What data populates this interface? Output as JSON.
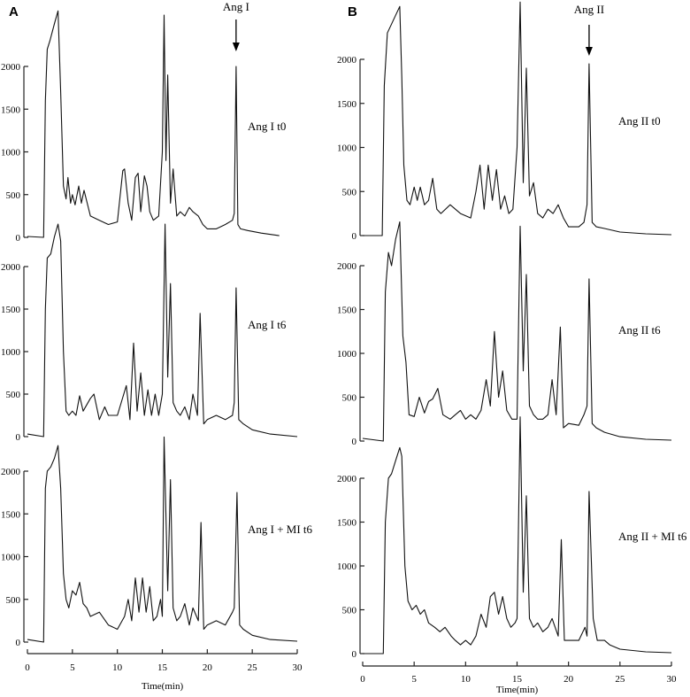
{
  "figure": {
    "panels": [
      {
        "letter": "A",
        "arrow_label": "Ang I",
        "xlabel": "Time(min)",
        "xticks": [
          "0",
          "5",
          "10",
          "15",
          "20",
          "25",
          "30"
        ],
        "yticks": [
          "0",
          "500",
          "1000",
          "1500",
          "2000"
        ],
        "trace_labels": [
          "Ang I t0",
          "Ang I t6",
          "Ang I + MI t6"
        ]
      },
      {
        "letter": "B",
        "arrow_label": "Ang II",
        "xlabel": "Time(min)",
        "xticks": [
          "0",
          "5",
          "10",
          "15",
          "20",
          "25",
          "30"
        ],
        "yticks": [
          "0",
          "500",
          "1000",
          "1500",
          "2000"
        ],
        "trace_labels": [
          "Ang II t0",
          "Ang II t6",
          "Ang II + MI t6"
        ]
      }
    ]
  },
  "chart_data": [
    {
      "type": "line",
      "title": "A",
      "xlabel": "Time(min)",
      "ylabel": "",
      "xlim": [
        0,
        30
      ],
      "ylim": [
        0,
        2000
      ],
      "annotations": [
        {
          "text": "Ang I",
          "x": 23.2,
          "arrow": true
        }
      ],
      "series": [
        {
          "name": "Ang I t0",
          "x": [
            0,
            1.8,
            2.0,
            2.2,
            2.5,
            3.0,
            3.4,
            3.7,
            4.0,
            4.3,
            4.5,
            4.8,
            5.0,
            5.3,
            5.7,
            6.0,
            6.3,
            7.0,
            8.0,
            9.0,
            10.0,
            10.6,
            10.8,
            11.2,
            11.6,
            12.0,
            12.3,
            12.6,
            13.0,
            13.3,
            13.6,
            14.0,
            14.6,
            15.0,
            15.2,
            15.4,
            15.6,
            15.9,
            16.2,
            16.6,
            17.0,
            17.5,
            18.0,
            18.4,
            19.0,
            19.5,
            20.0,
            21.0,
            22.0,
            22.8,
            23.0,
            23.2,
            23.4,
            23.7,
            24.5,
            26.0,
            28.0
          ],
          "y": [
            10,
            0,
            1600,
            2200,
            2300,
            2500,
            2650,
            1700,
            600,
            450,
            700,
            400,
            500,
            380,
            600,
            400,
            550,
            250,
            200,
            150,
            180,
            780,
            800,
            400,
            200,
            700,
            750,
            300,
            720,
            600,
            300,
            200,
            250,
            1000,
            2600,
            900,
            1900,
            400,
            800,
            250,
            300,
            250,
            350,
            300,
            250,
            150,
            100,
            100,
            150,
            200,
            280,
            2000,
            150,
            100,
            80,
            50,
            20
          ]
        },
        {
          "name": "Ang I t6",
          "x": [
            0,
            1.8,
            2.0,
            2.2,
            2.6,
            3.0,
            3.4,
            3.7,
            4.0,
            4.3,
            4.6,
            5.0,
            5.4,
            5.8,
            6.2,
            7.0,
            7.4,
            8.0,
            8.6,
            9.0,
            10.0,
            11.0,
            11.4,
            11.8,
            12.2,
            12.6,
            13.0,
            13.4,
            13.8,
            14.2,
            14.6,
            15.0,
            15.3,
            15.6,
            15.9,
            16.2,
            16.6,
            17.0,
            17.5,
            18.0,
            18.4,
            18.9,
            19.2,
            19.6,
            20.0,
            21.0,
            22.0,
            22.8,
            23.0,
            23.2,
            23.5,
            24.0,
            25.0,
            27.0,
            30.0
          ],
          "y": [
            30,
            0,
            1500,
            2100,
            2150,
            2350,
            2500,
            2300,
            1000,
            300,
            250,
            300,
            250,
            480,
            300,
            450,
            500,
            200,
            350,
            250,
            250,
            600,
            200,
            1100,
            300,
            750,
            250,
            550,
            250,
            500,
            250,
            500,
            2500,
            700,
            1800,
            400,
            300,
            250,
            350,
            200,
            500,
            250,
            1450,
            150,
            200,
            250,
            200,
            250,
            400,
            1750,
            200,
            150,
            80,
            30,
            0
          ]
        },
        {
          "name": "Ang I + MI t6",
          "x": [
            0,
            1.8,
            2.0,
            2.2,
            2.6,
            3.0,
            3.4,
            3.7,
            4.0,
            4.3,
            4.6,
            5.0,
            5.4,
            5.8,
            6.2,
            6.6,
            7.0,
            8.0,
            9.0,
            10.0,
            10.8,
            11.2,
            11.6,
            12.0,
            12.4,
            12.8,
            13.2,
            13.6,
            14.0,
            14.4,
            14.8,
            15.0,
            15.2,
            15.6,
            15.9,
            16.2,
            16.6,
            17.0,
            17.5,
            18.0,
            18.4,
            19.0,
            19.3,
            19.6,
            20.0,
            21.0,
            22.0,
            22.8,
            23.0,
            23.3,
            23.6,
            24.0,
            25.0,
            27.0,
            30.0
          ],
          "y": [
            30,
            0,
            1800,
            2000,
            2050,
            2150,
            2300,
            1800,
            800,
            500,
            400,
            600,
            550,
            700,
            450,
            400,
            300,
            350,
            200,
            150,
            300,
            500,
            250,
            750,
            350,
            750,
            350,
            650,
            250,
            300,
            500,
            300,
            2400,
            600,
            1900,
            400,
            250,
            300,
            450,
            200,
            400,
            250,
            1400,
            150,
            200,
            250,
            200,
            350,
            400,
            1750,
            200,
            150,
            80,
            30,
            10
          ]
        }
      ]
    },
    {
      "type": "line",
      "title": "B",
      "xlabel": "Time(min)",
      "ylabel": "",
      "xlim": [
        0,
        30
      ],
      "ylim": [
        0,
        2000
      ],
      "annotations": [
        {
          "text": "Ang II",
          "x": 22.0,
          "arrow": true
        }
      ],
      "series": [
        {
          "name": "Ang II t0",
          "x": [
            0,
            1.9,
            2.1,
            2.4,
            2.8,
            3.2,
            3.6,
            3.8,
            4.0,
            4.3,
            4.6,
            5.0,
            5.3,
            5.6,
            6.0,
            6.4,
            6.8,
            7.2,
            7.6,
            8.5,
            9.5,
            10.5,
            11.0,
            11.4,
            11.8,
            12.2,
            12.6,
            13.0,
            13.4,
            13.8,
            14.2,
            14.6,
            15.0,
            15.3,
            15.6,
            15.9,
            16.2,
            16.6,
            17.0,
            17.5,
            18.0,
            18.5,
            19.0,
            19.5,
            20.0,
            21.0,
            21.5,
            21.8,
            22.0,
            22.3,
            22.7,
            23.5,
            25.0,
            27.5,
            30.0
          ],
          "y": [
            0,
            0,
            1700,
            2300,
            2400,
            2500,
            2600,
            1800,
            800,
            400,
            350,
            550,
            400,
            550,
            350,
            400,
            650,
            300,
            250,
            350,
            250,
            200,
            500,
            800,
            300,
            800,
            400,
            750,
            300,
            450,
            250,
            300,
            1000,
            2650,
            600,
            1900,
            450,
            600,
            250,
            200,
            300,
            250,
            350,
            200,
            100,
            100,
            150,
            350,
            1950,
            150,
            100,
            80,
            40,
            20,
            10
          ]
        },
        {
          "name": "Ang II t6",
          "x": [
            0,
            2.0,
            2.2,
            2.5,
            2.8,
            3.2,
            3.6,
            3.9,
            4.2,
            4.5,
            5.0,
            5.5,
            6.0,
            6.4,
            6.8,
            7.3,
            7.8,
            8.5,
            9.0,
            9.5,
            10.0,
            10.5,
            11.0,
            11.5,
            12.0,
            12.4,
            12.8,
            13.2,
            13.6,
            14.0,
            14.5,
            15.0,
            15.3,
            15.6,
            15.9,
            16.2,
            16.6,
            17.0,
            17.5,
            18.0,
            18.4,
            18.8,
            19.2,
            19.5,
            20.0,
            21.0,
            21.5,
            21.8,
            22.0,
            22.3,
            22.7,
            23.5,
            25.0,
            27.5,
            30.0
          ],
          "y": [
            30,
            0,
            1700,
            2150,
            2000,
            2300,
            2500,
            1200,
            900,
            300,
            280,
            500,
            320,
            450,
            480,
            600,
            300,
            250,
            300,
            350,
            250,
            300,
            250,
            350,
            700,
            400,
            1250,
            500,
            800,
            350,
            250,
            250,
            2450,
            800,
            1900,
            400,
            300,
            250,
            250,
            300,
            700,
            300,
            1300,
            150,
            200,
            180,
            300,
            400,
            1850,
            200,
            150,
            100,
            50,
            20,
            10
          ]
        },
        {
          "name": "Ang II + MI t6",
          "x": [
            0,
            2.0,
            2.2,
            2.5,
            2.8,
            3.2,
            3.6,
            3.8,
            4.1,
            4.4,
            4.8,
            5.2,
            5.6,
            6.0,
            6.4,
            7.0,
            7.5,
            8.0,
            8.6,
            9.0,
            9.5,
            10.0,
            10.5,
            11.0,
            11.5,
            12.0,
            12.4,
            12.8,
            13.2,
            13.6,
            14.0,
            14.4,
            14.8,
            15.0,
            15.3,
            15.6,
            15.9,
            16.2,
            16.6,
            17.0,
            17.5,
            18.0,
            18.4,
            19.0,
            19.3,
            19.6,
            20.0,
            21.0,
            21.6,
            21.8,
            22.0,
            22.4,
            22.8,
            23.5,
            24.0,
            25.0,
            27.5,
            30.0
          ],
          "y": [
            0,
            0,
            1500,
            2000,
            2050,
            2200,
            2350,
            2250,
            1000,
            600,
            500,
            550,
            450,
            500,
            350,
            300,
            250,
            300,
            200,
            150,
            100,
            150,
            100,
            200,
            450,
            300,
            650,
            700,
            450,
            650,
            400,
            300,
            350,
            400,
            2700,
            700,
            1800,
            400,
            300,
            350,
            250,
            300,
            400,
            200,
            1300,
            150,
            150,
            150,
            300,
            200,
            1850,
            400,
            150,
            150,
            100,
            50,
            20,
            10
          ]
        }
      ]
    }
  ]
}
